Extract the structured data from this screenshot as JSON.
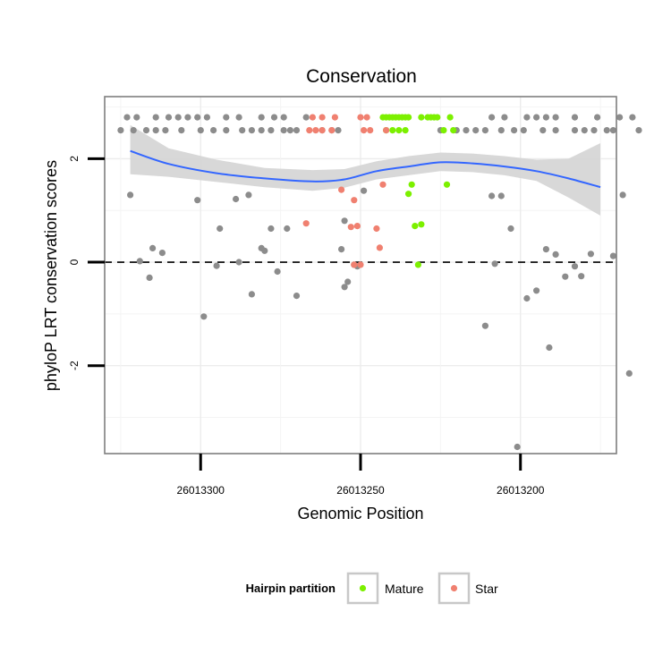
{
  "chart_data": {
    "type": "scatter",
    "title": "Conservation",
    "xlabel": "Genomic Position",
    "ylabel": "phyloP LRT conservation scores",
    "x_reversed": true,
    "xlim": [
      26013330,
      26013170
    ],
    "ylim": [
      -3.7,
      3.2
    ],
    "x_ticks": [
      26013300,
      26013250,
      26013200
    ],
    "y_ticks": [
      -2,
      0,
      2
    ],
    "y_tick_labels": [
      "-2",
      "0",
      "2"
    ],
    "grid": true,
    "reference_line": {
      "y": 0,
      "style": "dashed"
    },
    "colors": {
      "Other": "#8c8c8c",
      "Mature": "#7cf000",
      "Star": "#f08070",
      "smooth": "#3366ff",
      "ribbon": "#d4d4d4"
    },
    "legend": {
      "title": "Hairpin partition",
      "position": "bottom",
      "entries": [
        {
          "name": "Mature",
          "color": "#7cf000"
        },
        {
          "name": "Star",
          "color": "#f08070"
        }
      ]
    },
    "smooth": {
      "x": [
        26013322,
        26013310,
        26013295,
        26013280,
        26013265,
        26013255,
        26013245,
        26013235,
        26013225,
        26013215,
        26013205,
        26013195,
        26013185,
        26013175
      ],
      "y": [
        2.15,
        1.9,
        1.72,
        1.62,
        1.56,
        1.6,
        1.76,
        1.85,
        1.93,
        1.91,
        1.85,
        1.76,
        1.62,
        1.45
      ],
      "lower": [
        1.7,
        1.65,
        1.55,
        1.45,
        1.38,
        1.44,
        1.6,
        1.68,
        1.76,
        1.74,
        1.68,
        1.57,
        1.25,
        0.9
      ],
      "upper": [
        2.65,
        2.2,
        1.98,
        1.82,
        1.78,
        1.8,
        1.95,
        2.05,
        2.12,
        2.1,
        2.05,
        1.98,
        2.0,
        2.3
      ]
    },
    "series": [
      {
        "name": "Other",
        "color": "#8c8c8c",
        "points": [
          [
            26013323,
            2.8
          ],
          [
            26013320,
            2.8
          ],
          [
            26013314,
            2.8
          ],
          [
            26013310,
            2.8
          ],
          [
            26013307,
            2.8
          ],
          [
            26013304,
            2.8
          ],
          [
            26013301,
            2.8
          ],
          [
            26013298,
            2.8
          ],
          [
            26013292,
            2.8
          ],
          [
            26013288,
            2.8
          ],
          [
            26013281,
            2.8
          ],
          [
            26013277,
            2.8
          ],
          [
            26013274,
            2.8
          ],
          [
            26013267,
            2.8
          ],
          [
            26013209,
            2.8
          ],
          [
            26013205,
            2.8
          ],
          [
            26013198,
            2.8
          ],
          [
            26013195,
            2.8
          ],
          [
            26013192,
            2.8
          ],
          [
            26013189,
            2.8
          ],
          [
            26013183,
            2.8
          ],
          [
            26013176,
            2.8
          ],
          [
            26013169,
            2.8
          ],
          [
            26013165,
            2.8
          ],
          [
            26013325,
            2.55
          ],
          [
            26013321,
            2.55
          ],
          [
            26013317,
            2.55
          ],
          [
            26013314,
            2.55
          ],
          [
            26013311,
            2.55
          ],
          [
            26013306,
            2.55
          ],
          [
            26013300,
            2.55
          ],
          [
            26013296,
            2.55
          ],
          [
            26013292,
            2.55
          ],
          [
            26013287,
            2.55
          ],
          [
            26013284,
            2.55
          ],
          [
            26013281,
            2.55
          ],
          [
            26013278,
            2.55
          ],
          [
            26013274,
            2.55
          ],
          [
            26013272,
            2.55
          ],
          [
            26013270,
            2.55
          ],
          [
            26013262,
            2.55
          ],
          [
            26013259,
            2.55
          ],
          [
            26013257,
            2.55
          ],
          [
            26013225,
            2.55
          ],
          [
            26013220,
            2.55
          ],
          [
            26013217,
            2.55
          ],
          [
            26013214,
            2.55
          ],
          [
            26013211,
            2.55
          ],
          [
            26013206,
            2.55
          ],
          [
            26013202,
            2.55
          ],
          [
            26013199,
            2.55
          ],
          [
            26013193,
            2.55
          ],
          [
            26013189,
            2.55
          ],
          [
            26013183,
            2.55
          ],
          [
            26013180,
            2.55
          ],
          [
            26013177,
            2.55
          ],
          [
            26013173,
            2.55
          ],
          [
            26013171,
            2.55
          ],
          [
            26013163,
            2.55
          ],
          [
            26013322,
            1.3
          ],
          [
            26013301,
            1.2
          ],
          [
            26013289,
            1.22
          ],
          [
            26013285,
            1.3
          ],
          [
            26013249,
            1.38
          ],
          [
            26013209,
            1.28
          ],
          [
            26013206,
            1.28
          ],
          [
            26013168,
            1.3
          ],
          [
            26013294,
            0.65
          ],
          [
            26013278,
            0.65
          ],
          [
            26013273,
            0.65
          ],
          [
            26013255,
            0.8
          ],
          [
            26013203,
            0.65
          ],
          [
            26013315,
            0.27
          ],
          [
            26013312,
            0.18
          ],
          [
            26013281,
            0.27
          ],
          [
            26013280,
            0.22
          ],
          [
            26013256,
            0.25
          ],
          [
            26013192,
            0.25
          ],
          [
            26013189,
            0.15
          ],
          [
            26013178,
            0.16
          ],
          [
            26013319,
            0.02
          ],
          [
            26013288,
            0.0
          ],
          [
            26013252,
            -0.05
          ],
          [
            26013295,
            -0.07
          ],
          [
            26013251,
            -0.08
          ],
          [
            26013208,
            -0.03
          ],
          [
            26013183,
            -0.08
          ],
          [
            26013316,
            -0.3
          ],
          [
            26013276,
            -0.18
          ],
          [
            26013254,
            -0.38
          ],
          [
            26013255,
            -0.48
          ],
          [
            26013186,
            -0.28
          ],
          [
            26013181,
            -0.27
          ],
          [
            26013171,
            0.12
          ],
          [
            26013284,
            -0.62
          ],
          [
            26013270,
            -0.65
          ],
          [
            26013198,
            -0.7
          ],
          [
            26013195,
            -0.55
          ],
          [
            26013299,
            -1.05
          ],
          [
            26013211,
            -1.23
          ],
          [
            26013191,
            -1.65
          ],
          [
            26013166,
            -2.15
          ],
          [
            26013201,
            -3.57
          ]
        ]
      },
      {
        "name": "Mature",
        "color": "#7cf000",
        "points": [
          [
            26013243,
            2.8
          ],
          [
            26013242,
            2.8
          ],
          [
            26013241,
            2.8
          ],
          [
            26013240,
            2.8
          ],
          [
            26013239,
            2.8
          ],
          [
            26013238,
            2.8
          ],
          [
            26013237,
            2.8
          ],
          [
            26013236,
            2.8
          ],
          [
            26013235,
            2.8
          ],
          [
            26013231,
            2.8
          ],
          [
            26013229,
            2.8
          ],
          [
            26013228,
            2.8
          ],
          [
            26013227,
            2.8
          ],
          [
            26013226,
            2.8
          ],
          [
            26013222,
            2.8
          ],
          [
            26013242,
            2.55
          ],
          [
            26013240,
            2.55
          ],
          [
            26013238,
            2.55
          ],
          [
            26013236,
            2.55
          ],
          [
            26013224,
            2.55
          ],
          [
            26013221,
            2.55
          ],
          [
            26013234,
            1.5
          ],
          [
            26013223,
            1.5
          ],
          [
            26013235,
            1.32
          ],
          [
            26013233,
            0.7
          ],
          [
            26013231,
            0.73
          ],
          [
            26013232,
            -0.05
          ]
        ]
      },
      {
        "name": "Star",
        "color": "#f08070",
        "points": [
          [
            26013265,
            2.8
          ],
          [
            26013262,
            2.8
          ],
          [
            26013258,
            2.8
          ],
          [
            26013250,
            2.8
          ],
          [
            26013248,
            2.8
          ],
          [
            26013266,
            2.55
          ],
          [
            26013264,
            2.55
          ],
          [
            26013262,
            2.55
          ],
          [
            26013259,
            2.55
          ],
          [
            26013249,
            2.55
          ],
          [
            26013247,
            2.55
          ],
          [
            26013242,
            2.55
          ],
          [
            26013256,
            1.4
          ],
          [
            26013243,
            1.5
          ],
          [
            26013252,
            1.2
          ],
          [
            26013267,
            0.75
          ],
          [
            26013253,
            0.68
          ],
          [
            26013251,
            0.7
          ],
          [
            26013245,
            0.65
          ],
          [
            26013244,
            0.28
          ],
          [
            26013252,
            -0.05
          ],
          [
            26013250,
            -0.05
          ]
        ]
      }
    ]
  }
}
